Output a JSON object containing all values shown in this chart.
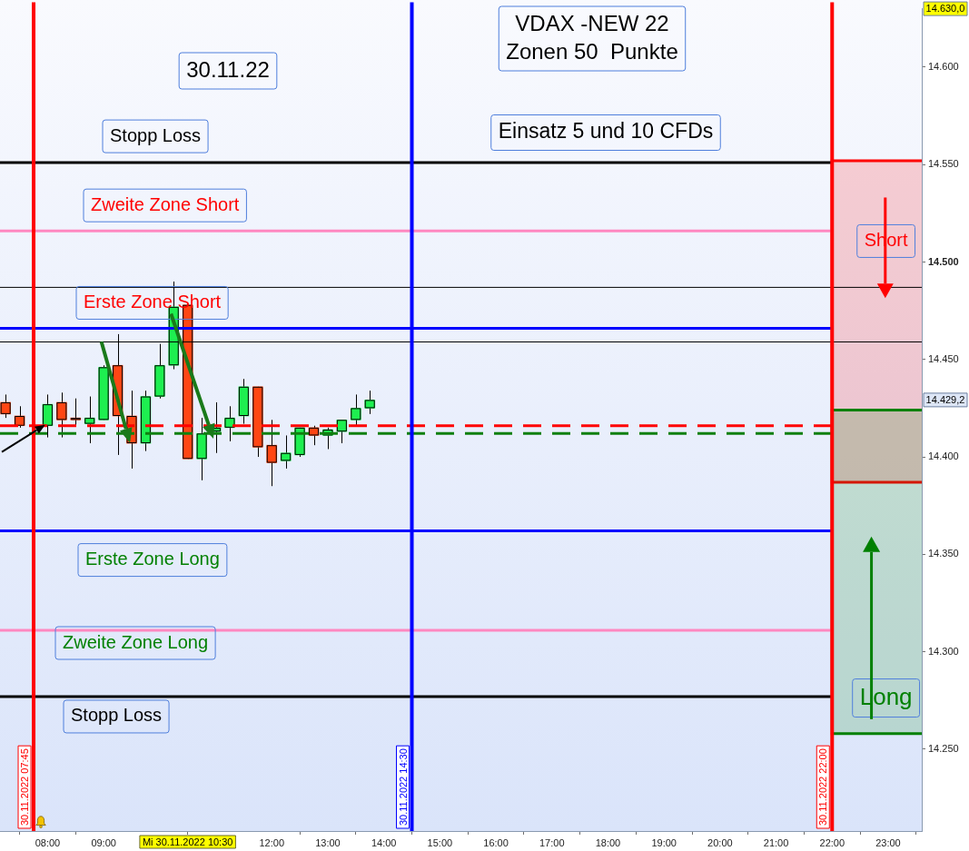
{
  "chart_data": {
    "type": "candlestick",
    "title": "VDAX -NEW 22",
    "subtitle": "Zonen 50  Punkte",
    "x": [
      "2022-11-30T07:15",
      "2022-11-30T07:30",
      "2022-11-30T08:00",
      "2022-11-30T08:15",
      "2022-11-30T08:30",
      "2022-11-30T08:45",
      "2022-11-30T09:00",
      "2022-11-30T09:15",
      "2022-11-30T09:30",
      "2022-11-30T09:45",
      "2022-11-30T10:00",
      "2022-11-30T10:15",
      "2022-11-30T10:30",
      "2022-11-30T10:45",
      "2022-11-30T11:00",
      "2022-11-30T11:15",
      "2022-11-30T11:30",
      "2022-11-30T11:45",
      "2022-11-30T12:00",
      "2022-11-30T12:15",
      "2022-11-30T12:30",
      "2022-11-30T12:45",
      "2022-11-30T13:00",
      "2022-11-30T13:15",
      "2022-11-30T13:30",
      "2022-11-30T13:45"
    ],
    "ohlc": [
      [
        14428,
        14432,
        14420,
        14422
      ],
      [
        14421,
        14426,
        14415,
        14416
      ],
      [
        14416,
        14432,
        14410,
        14427
      ],
      [
        14428,
        14433,
        14410,
        14419
      ],
      [
        14420,
        14430,
        14416,
        14419
      ],
      [
        14417,
        14431,
        14407,
        14420
      ],
      [
        14419,
        14447,
        14419,
        14446
      ],
      [
        14447,
        14463,
        14401,
        14421
      ],
      [
        14421,
        14434,
        14394,
        14407
      ],
      [
        14407,
        14434,
        14403,
        14431
      ],
      [
        14431,
        14458,
        14430,
        14447
      ],
      [
        14447,
        14490,
        14445,
        14477
      ],
      [
        14478,
        14478,
        14399,
        14399
      ],
      [
        14399,
        14420,
        14388,
        14412
      ],
      [
        14413,
        14428,
        14402,
        14415
      ],
      [
        14415,
        14426,
        14408,
        14420
      ],
      [
        14421,
        14440,
        14417,
        14436
      ],
      [
        14436,
        14436,
        14400,
        14405
      ],
      [
        14406,
        14419,
        14385,
        14397
      ],
      [
        14398,
        14411,
        14394,
        14402
      ],
      [
        14401,
        14415,
        14400,
        14415
      ],
      [
        14415,
        14416,
        14406,
        14411
      ],
      [
        14411,
        14415,
        14404,
        14414
      ],
      [
        14413,
        14419,
        14407,
        14419
      ],
      [
        14419,
        14432,
        14416,
        14425
      ],
      [
        14425,
        14434,
        14422,
        14429.2
      ]
    ],
    "colors": [
      "#ff4614",
      "#ff4614",
      "#1eef50",
      "#ff4614",
      "#ff4614",
      "#1eef50",
      "#1eef50",
      "#ff4614",
      "#ff4614",
      "#1eef50",
      "#1eef50",
      "#1eef50",
      "#ff4614",
      "#1eef50",
      "#1eef50",
      "#1eef50",
      "#1eef50",
      "#ff4614",
      "#ff4614",
      "#1eef50",
      "#1eef50",
      "#ff4614",
      "#1eef50",
      "#1eef50",
      "#1eef50",
      "#1eef50"
    ],
    "xlim": [
      "2022-11-30T07:09",
      "2022-11-30T23:36"
    ],
    "xticks": [
      {
        "value": "2022-11-30T08:00",
        "label": "08:00"
      },
      {
        "value": "2022-11-30T09:00",
        "label": "09:00"
      },
      {
        "value": "2022-11-30T12:00",
        "label": "12:00"
      },
      {
        "value": "2022-11-30T13:00",
        "label": "13:00"
      },
      {
        "value": "2022-11-30T14:00",
        "label": "14:00"
      },
      {
        "value": "2022-11-30T15:00",
        "label": "15:00"
      },
      {
        "value": "2022-11-30T16:00",
        "label": "16:00"
      },
      {
        "value": "2022-11-30T17:00",
        "label": "17:00"
      },
      {
        "value": "2022-11-30T18:00",
        "label": "18:00"
      },
      {
        "value": "2022-11-30T19:00",
        "label": "19:00"
      },
      {
        "value": "2022-11-30T20:00",
        "label": "20:00"
      },
      {
        "value": "2022-11-30T21:00",
        "label": "21:00"
      },
      {
        "value": "2022-11-30T22:00",
        "label": "22:00"
      },
      {
        "value": "2022-11-30T23:00",
        "label": "23:00"
      }
    ],
    "ylim": [
      14208,
      14630
    ],
    "yticks": [
      {
        "value": 14250,
        "label": "14.250"
      },
      {
        "value": 14300,
        "label": "14.300"
      },
      {
        "value": 14350,
        "label": "14.350"
      },
      {
        "value": 14400,
        "label": "14.400"
      },
      {
        "value": 14450,
        "label": "14.450"
      },
      {
        "value": 14500,
        "label": "14.500"
      },
      {
        "value": 14550,
        "label": "14.550"
      },
      {
        "value": 14600,
        "label": "14.600"
      }
    ],
    "ref_lines": [
      {
        "axis": "y",
        "value": 14551,
        "label": "Stopp Loss",
        "color": "#000000"
      },
      {
        "axis": "y",
        "value": 14516,
        "label": "Zweite Zone Short",
        "color": "#ff88c0"
      },
      {
        "axis": "y",
        "value": 14466,
        "label": "Erste Zone Short",
        "color": "#0000ff"
      },
      {
        "axis": "y",
        "value": 14362,
        "label": "Erste Zone Long",
        "color": "#0000ff"
      },
      {
        "axis": "y",
        "value": 14311,
        "label": "Zweite Zone Long",
        "color": "#ff88c0"
      },
      {
        "axis": "y",
        "value": 14277,
        "label": "Stopp Loss",
        "color": "#000000"
      },
      {
        "axis": "y",
        "value": 14487,
        "color": "#000000"
      },
      {
        "axis": "y",
        "value": 14459,
        "color": "#000000"
      },
      {
        "axis": "y",
        "value": 14416,
        "color": "#ff0000",
        "line_style": "dashed"
      },
      {
        "axis": "y",
        "value": 14412,
        "color": "#108010",
        "line_style": "dashed"
      },
      {
        "axis": "x",
        "value": "2022-11-30T07:45",
        "label": "30.11.2022 07:45",
        "color": "#ff0000"
      },
      {
        "axis": "x",
        "value": "2022-11-30T14:30",
        "label": "30.11.2022 14:30",
        "color": "#0000ff"
      },
      {
        "axis": "x",
        "value": "2022-11-30T22:00",
        "label": "30.11.2022 22:00",
        "color": "#ff0000"
      }
    ],
    "bands": [
      {
        "axis": "y",
        "from": 14387,
        "to": 14552,
        "label": "Short",
        "color": "#ff0000"
      },
      {
        "axis": "y",
        "from": 14258,
        "to": 14424,
        "label": "Long",
        "color": "#008000"
      }
    ],
    "annotations": [
      "30.11.22",
      "Einsatz 5 und 10 CFDs",
      "Mi 30.11.2022 10:30",
      "14.630,0",
      "14.429,2"
    ]
  }
}
